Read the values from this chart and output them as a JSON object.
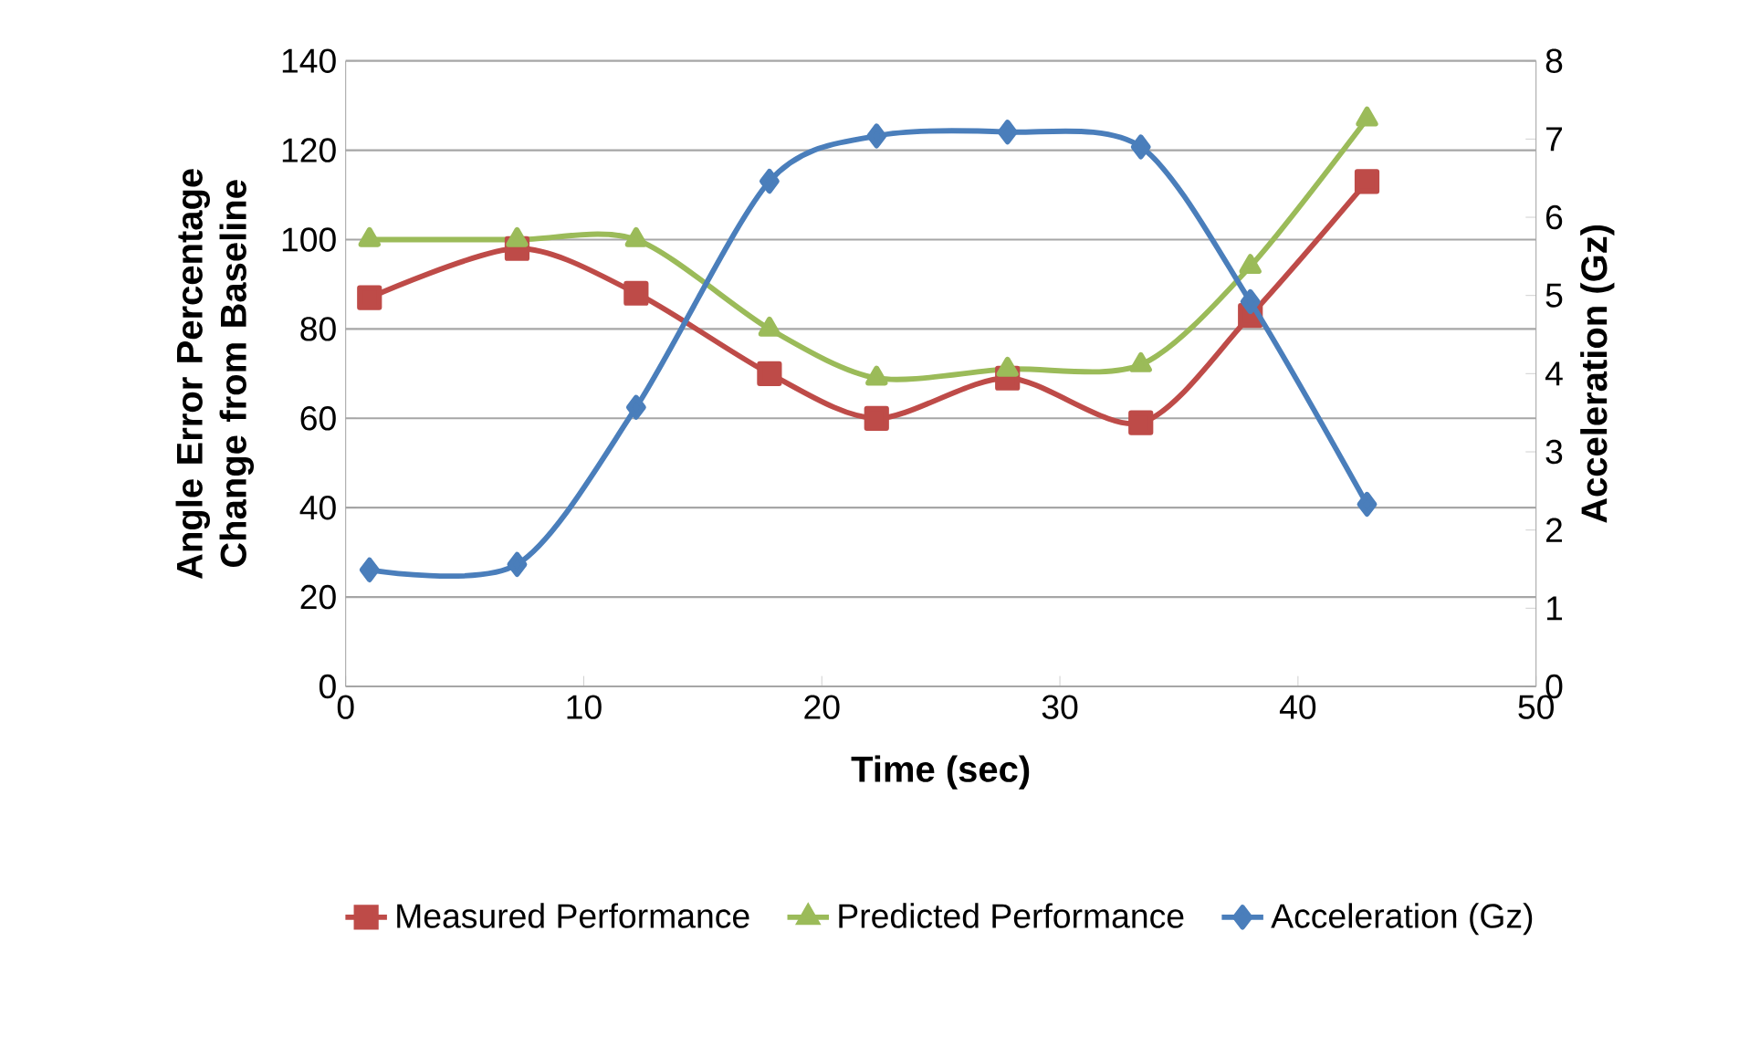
{
  "chart_data": {
    "type": "line",
    "xlabel": "Time (sec)",
    "ylabel": "Angle Error Percentage Change from Baseline",
    "y2label": "Acceleration (Gz)",
    "x": [
      1.0,
      7.2,
      12.2,
      17.8,
      22.3,
      27.8,
      33.4,
      38.0,
      42.9
    ],
    "xlim": [
      0,
      50
    ],
    "xticks": [
      0,
      10,
      20,
      30,
      40,
      50
    ],
    "ylim": [
      0,
      140
    ],
    "yticks": [
      0,
      20,
      40,
      60,
      80,
      100,
      120,
      140
    ],
    "y2lim": [
      0,
      8
    ],
    "y2ticks": [
      0,
      1,
      2,
      3,
      4,
      5,
      6,
      7,
      8
    ],
    "grid": "y",
    "legend": "bottom",
    "series": [
      {
        "name": "Measured Performance",
        "color": "#be4b48",
        "marker": "square",
        "values": [
          87,
          98,
          88,
          70,
          60,
          69,
          59,
          83,
          113
        ]
      },
      {
        "name": "Predicted Performance",
        "color": "#9bbb59",
        "marker": "triangle",
        "values": [
          100,
          100,
          100,
          80,
          69,
          71,
          72,
          94,
          127
        ]
      },
      {
        "name": "Acceleration (Gz)",
        "color": "#4a7ebb",
        "marker": "diamond",
        "axis": "y2",
        "values": [
          1.49,
          1.56,
          3.57,
          6.46,
          7.04,
          7.09,
          6.9,
          4.92,
          2.33
        ]
      }
    ]
  }
}
